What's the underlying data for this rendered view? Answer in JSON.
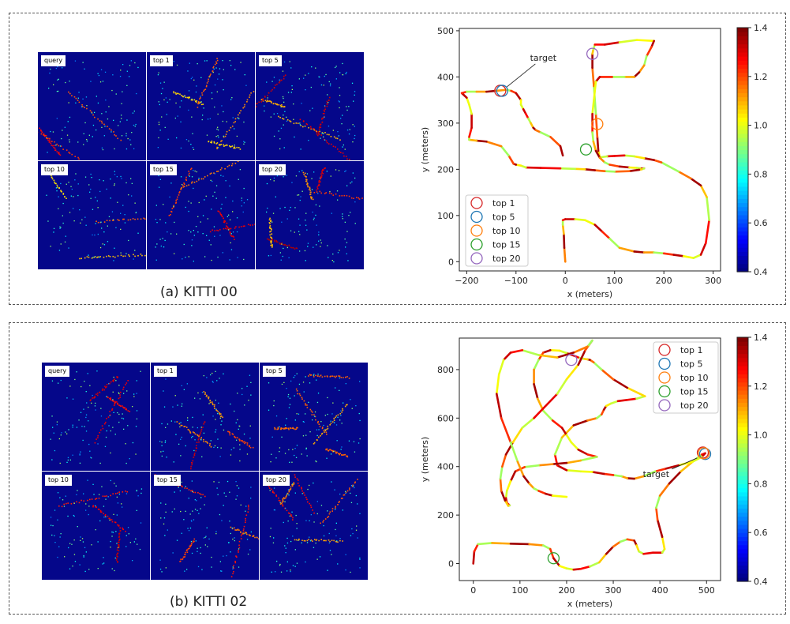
{
  "panel_a": {
    "caption": "(a) KITTI 00",
    "tiles": [
      "query",
      "top 1",
      "top 5",
      "top 10",
      "top 15",
      "top 20"
    ]
  },
  "panel_b": {
    "caption": "(b) KITTI 02",
    "tiles": [
      "query",
      "top 1",
      "top 5",
      "top 10",
      "top 15",
      "top 20"
    ]
  },
  "chart_data": [
    {
      "type": "line",
      "title": "",
      "xlabel": "x (meters)",
      "ylabel": "y (meters)",
      "xlim": [
        -215,
        315
      ],
      "ylim": [
        -20,
        505
      ],
      "xticks": [
        -200,
        -100,
        0,
        100,
        200,
        300
      ],
      "yticks": [
        0,
        100,
        200,
        300,
        400,
        500
      ],
      "annotation": {
        "text": "target",
        "x": -128,
        "y": 370
      },
      "colorbar": {
        "min": 0.4,
        "max": 1.4,
        "ticks": [
          0.4,
          0.6,
          0.8,
          1.0,
          1.2,
          1.4
        ],
        "colormap": "jet"
      },
      "legend_position": "lower-left",
      "series": [
        {
          "name": "top 1",
          "x": [
            -132
          ],
          "y": [
            370
          ],
          "color": "#d62728"
        },
        {
          "name": "top 5",
          "x": [
            -128
          ],
          "y": [
            370
          ],
          "color": "#1f77b4"
        },
        {
          "name": "top 10",
          "x": [
            65
          ],
          "y": [
            298
          ],
          "color": "#ff7f0e"
        },
        {
          "name": "top 15",
          "x": [
            42
          ],
          "y": [
            243
          ],
          "color": "#2ca02c"
        },
        {
          "name": "top 20",
          "x": [
            55
          ],
          "y": [
            450
          ],
          "color": "#9467bd"
        }
      ],
      "trajectory": {
        "x": [
          0,
          -2,
          -3,
          -5,
          -5,
          0,
          20,
          40,
          60,
          75,
          90,
          110,
          140,
          160,
          180,
          200,
          220,
          240,
          260,
          275,
          285,
          292,
          287,
          275,
          255,
          230,
          195,
          180,
          160,
          140,
          120,
          100,
          85,
          70,
          67,
          65,
          62,
          58,
          55,
          55,
          57,
          60,
          80,
          110,
          145,
          180,
          175,
          165,
          160,
          150,
          140,
          120,
          95,
          70,
          62,
          58,
          55,
          55,
          55,
          57,
          62,
          70,
          80,
          90,
          110,
          130,
          145,
          155,
          160,
          160,
          155,
          150,
          130,
          100,
          80,
          60,
          40,
          20,
          -10,
          -50,
          -80,
          -90,
          -100,
          -105,
          -115,
          -130,
          -160,
          -180,
          -195,
          -195,
          -190,
          -190,
          -195,
          -200,
          -210,
          -200,
          -180,
          -160,
          -140,
          -120,
          -110,
          -100,
          -90,
          -90,
          -85,
          -80,
          -75,
          -70,
          -65,
          -60,
          -50,
          -30,
          -10,
          -5
        ],
        "y": [
          0,
          30,
          60,
          80,
          90,
          92,
          92,
          90,
          80,
          65,
          50,
          30,
          22,
          20,
          20,
          18,
          15,
          12,
          8,
          15,
          40,
          90,
          140,
          165,
          180,
          195,
          215,
          220,
          224,
          228,
          230,
          229,
          228,
          226,
          240,
          270,
          320,
          380,
          420,
          450,
          460,
          470,
          470,
          475,
          480,
          478,
          465,
          445,
          425,
          410,
          400,
          400,
          400,
          400,
          390,
          350,
          320,
          300,
          280,
          260,
          240,
          225,
          215,
          210,
          206,
          204,
          203,
          202,
          202,
          202,
          200,
          199,
          196,
          195,
          196,
          198,
          200,
          201,
          202,
          203,
          204,
          208,
          210,
          212,
          230,
          250,
          260,
          262,
          264,
          270,
          290,
          320,
          340,
          355,
          365,
          368,
          368,
          368,
          370,
          372,
          370,
          365,
          350,
          340,
          330,
          320,
          310,
          300,
          290,
          285,
          280,
          270,
          250,
          230
        ]
      }
    },
    {
      "type": "line",
      "title": "",
      "xlabel": "x (meters)",
      "ylabel": "y (meters)",
      "xlim": [
        -30,
        530
      ],
      "ylim": [
        -70,
        930
      ],
      "xticks": [
        0,
        100,
        200,
        300,
        400,
        500
      ],
      "yticks": [
        0,
        200,
        400,
        600,
        800
      ],
      "annotation": {
        "text": "target",
        "x": 490,
        "y": 455
      },
      "colorbar": {
        "min": 0.4,
        "max": 1.4,
        "ticks": [
          0.4,
          0.6,
          0.8,
          1.0,
          1.2,
          1.4
        ],
        "colormap": "jet"
      },
      "legend_position": "upper-right",
      "series": [
        {
          "name": "top 1",
          "x": [
            492
          ],
          "y": [
            458
          ],
          "color": "#d62728"
        },
        {
          "name": "top 5",
          "x": [
            497
          ],
          "y": [
            452
          ],
          "color": "#1f77b4"
        },
        {
          "name": "top 10",
          "x": [
            494
          ],
          "y": [
            455
          ],
          "color": "#ff7f0e"
        },
        {
          "name": "top 15",
          "x": [
            172
          ],
          "y": [
            22
          ],
          "color": "#2ca02c"
        },
        {
          "name": "top 20",
          "x": [
            210
          ],
          "y": [
            840
          ],
          "color": "#9467bd"
        }
      ],
      "trajectory": {
        "x": [
          0,
          2,
          10,
          40,
          80,
          120,
          150,
          165,
          172,
          185,
          200,
          215,
          230,
          250,
          270,
          285,
          300,
          315,
          330,
          345,
          350,
          355,
          365,
          385,
          405,
          410,
          405,
          395,
          392,
          400,
          420,
          445,
          470,
          490,
          497,
          490,
          470,
          440,
          410,
          390,
          365,
          345,
          330,
          318,
          300,
          280,
          255,
          230,
          200,
          180,
          175,
          190,
          215,
          245,
          265,
          275,
          280,
          285,
          295,
          310,
          330,
          350,
          368,
          330,
          300,
          275,
          258,
          250,
          245,
          235,
          225,
          215,
          200,
          185,
          165,
          150,
          140,
          130,
          130,
          138,
          150,
          170,
          190,
          200,
          210,
          225,
          245,
          265,
          230,
          200,
          170,
          140,
          110,
          90,
          80,
          72,
          70,
          72,
          78,
          75,
          68,
          60,
          58,
          62,
          70,
          85,
          105,
          130,
          150,
          180,
          200,
          225,
          240,
          255,
          245,
          215,
          180,
          140,
          105,
          80,
          65,
          55,
          50,
          60,
          80,
          95,
          108,
          120,
          130,
          140,
          155,
          170,
          200
        ],
        "y": [
          0,
          50,
          80,
          85,
          82,
          80,
          75,
          60,
          22,
          -10,
          -20,
          -25,
          -22,
          -12,
          5,
          40,
          70,
          90,
          100,
          95,
          75,
          50,
          40,
          45,
          45,
          60,
          110,
          180,
          230,
          280,
          330,
          380,
          420,
          450,
          455,
          440,
          420,
          405,
          390,
          380,
          360,
          350,
          352,
          360,
          365,
          370,
          378,
          380,
          385,
          405,
          450,
          520,
          570,
          590,
          600,
          615,
          635,
          650,
          660,
          670,
          675,
          680,
          690,
          725,
          760,
          800,
          830,
          840,
          842,
          845,
          850,
          858,
          868,
          878,
          880,
          870,
          840,
          800,
          740,
          680,
          630,
          590,
          560,
          530,
          500,
          470,
          450,
          440,
          425,
          415,
          410,
          405,
          398,
          380,
          340,
          300,
          270,
          250,
          240,
          238,
          260,
          300,
          350,
          400,
          450,
          500,
          560,
          600,
          640,
          700,
          760,
          820,
          880,
          920,
          895,
          870,
          850,
          860,
          880,
          870,
          840,
          780,
          700,
          600,
          500,
          420,
          360,
          330,
          310,
          300,
          288,
          280,
          275
        ]
      }
    }
  ]
}
